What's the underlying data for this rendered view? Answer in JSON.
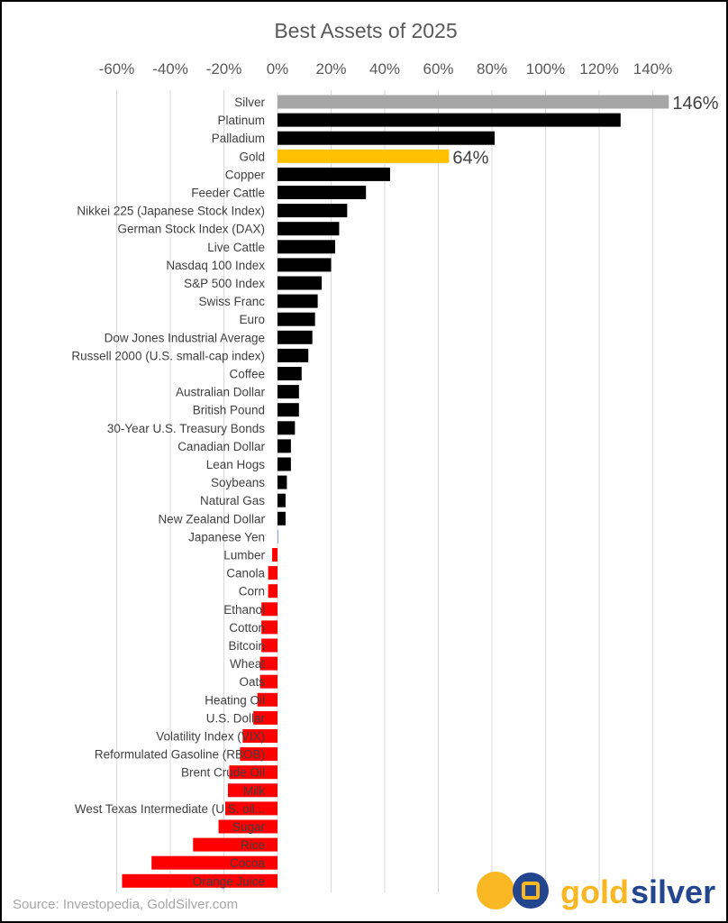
{
  "chart_data": {
    "type": "bar",
    "orientation": "horizontal",
    "title": "Best Assets of 2025",
    "xlim": [
      -60,
      146
    ],
    "x_ticks": [
      "-60%",
      "-40%",
      "-20%",
      "0%",
      "20%",
      "40%",
      "60%",
      "80%",
      "100%",
      "120%",
      "140%"
    ],
    "x_tick_values": [
      -60,
      -40,
      -20,
      0,
      20,
      40,
      60,
      80,
      100,
      120,
      140
    ],
    "grid": "vertical",
    "categories": [
      "Silver",
      "Platinum",
      "Palladium",
      "Gold",
      "Copper",
      "Feeder Cattle",
      "Nikkei 225 (Japanese Stock Index)",
      "German Stock Index (DAX)",
      "Live Cattle",
      "Nasdaq 100 Index",
      "S&P 500 Index",
      "Swiss Franc",
      "Euro",
      "Dow Jones Industrial Average",
      "Russell 2000 (U.S. small-cap index)",
      "Coffee",
      "Australian Dollar",
      "British Pound",
      "30-Year U.S. Treasury Bonds",
      "Canadian Dollar",
      "Lean Hogs",
      "Soybeans",
      "Natural Gas",
      "New Zealand Dollar",
      "Japanese Yen",
      "Lumber",
      "Canola",
      "Corn",
      "Ethanol",
      "Cotton",
      "Bitcoin",
      "Wheat",
      "Oats",
      "Heating Oil",
      "U.S. Dollar",
      "Volatility Index (VIX)",
      "Reformulated Gasoline (RBOB)",
      "Brent Crude Oil",
      "Milk",
      "West Texas Intermediate (U.S. oil...",
      "Sugar",
      "Rice",
      "Cocoa",
      "Orange Juice"
    ],
    "values": [
      146,
      128,
      81,
      64,
      42,
      33,
      26,
      23,
      21.5,
      20,
      16.5,
      15,
      14,
      13,
      11.5,
      9,
      8,
      8,
      6.5,
      5,
      5,
      3.5,
      3,
      3,
      0.3,
      -2,
      -3.5,
      -3.5,
      -6,
      -6,
      -6,
      -6.5,
      -6.5,
      -7.5,
      -9,
      -13,
      -14,
      -18,
      -18.5,
      -19.5,
      -22,
      -31.5,
      -47,
      -58
    ],
    "data_labels": {
      "Silver": "146%",
      "Gold": "64%"
    },
    "colors": {
      "silver": "#a6a6a6",
      "gold": "#ffc000",
      "positive": "#000000",
      "negative": "#ff0000",
      "grid": "#d9d9d9",
      "text": "#404040"
    }
  },
  "source": "Source: Investopedia, GoldSilver.com",
  "logo": {
    "text_gold": "gold",
    "text_silver": "silver",
    "gold_color": "#f9b823",
    "silver_color": "#24468e"
  }
}
